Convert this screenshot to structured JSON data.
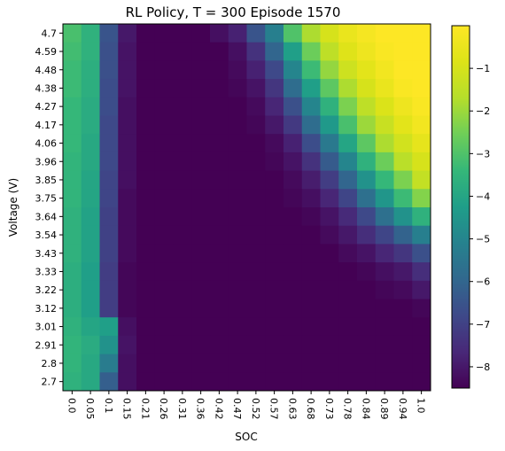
{
  "chart_data": {
    "type": "heatmap",
    "title": "RL Policy, T = 300 Episode 1570",
    "xlabel": "SOC",
    "ylabel": "Voltage (V)",
    "x_ticklabels": [
      "0.0",
      "0.05",
      "0.1",
      "0.15",
      "0.21",
      "0.26",
      "0.31",
      "0.36",
      "0.42",
      "0.47",
      "0.52",
      "0.57",
      "0.63",
      "0.68",
      "0.73",
      "0.78",
      "0.84",
      "0.89",
      "0.94",
      "1.0"
    ],
    "y_ticklabels": [
      "4.7",
      "4.59",
      "4.48",
      "4.38",
      "4.27",
      "4.17",
      "4.06",
      "3.96",
      "3.85",
      "3.75",
      "3.64",
      "3.54",
      "3.43",
      "3.33",
      "3.22",
      "3.12",
      "3.01",
      "2.91",
      "2.8",
      "2.7"
    ],
    "colorbar": {
      "colormap": "viridis",
      "range": [
        -8.5,
        0
      ],
      "ticklabels": [
        "-1",
        "-2",
        "-3",
        "-4",
        "-5",
        "-6",
        "-7",
        "-8"
      ],
      "tickvalues": [
        -1,
        -2,
        -3,
        -4,
        -5,
        -6,
        -7,
        -8
      ]
    },
    "values": [
      [
        -3.1,
        -3.6,
        -6.5,
        -8.0,
        -8.5,
        -8.5,
        -8.5,
        -8.5,
        -8.2,
        -7.8,
        -6.5,
        -5.2,
        -3.0,
        -1.8,
        -1.0,
        -0.5,
        -0.2,
        0,
        0,
        0
      ],
      [
        -3.2,
        -3.6,
        -6.6,
        -8.1,
        -8.5,
        -8.5,
        -8.5,
        -8.5,
        -8.5,
        -8.2,
        -7.4,
        -6.0,
        -4.2,
        -2.6,
        -1.5,
        -0.8,
        -0.4,
        -0.1,
        0,
        0
      ],
      [
        -3.3,
        -3.7,
        -6.6,
        -8.1,
        -8.5,
        -8.5,
        -8.5,
        -8.5,
        -8.5,
        -8.3,
        -7.8,
        -6.8,
        -5.0,
        -3.3,
        -2.1,
        -1.2,
        -0.7,
        -0.3,
        0,
        0
      ],
      [
        -3.3,
        -3.7,
        -6.7,
        -8.1,
        -8.5,
        -8.5,
        -8.5,
        -8.5,
        -8.5,
        -8.4,
        -8.1,
        -7.3,
        -5.8,
        -4.2,
        -2.8,
        -1.8,
        -1.0,
        -0.5,
        -0.1,
        0
      ],
      [
        -3.4,
        -3.8,
        -6.7,
        -8.2,
        -8.5,
        -8.5,
        -8.5,
        -8.5,
        -8.5,
        -8.5,
        -8.3,
        -7.7,
        -6.6,
        -5.0,
        -3.6,
        -2.4,
        -1.5,
        -0.9,
        -0.4,
        -0.1
      ],
      [
        -3.4,
        -3.8,
        -6.8,
        -8.2,
        -8.5,
        -8.5,
        -8.5,
        -8.5,
        -8.5,
        -8.5,
        -8.4,
        -8.0,
        -7.2,
        -5.8,
        -4.4,
        -3.1,
        -2.0,
        -1.3,
        -0.7,
        -0.3
      ],
      [
        -3.4,
        -3.9,
        -6.8,
        -8.2,
        -8.5,
        -8.5,
        -8.5,
        -8.5,
        -8.5,
        -8.5,
        -8.5,
        -8.3,
        -7.8,
        -6.7,
        -5.4,
        -4.0,
        -2.8,
        -1.8,
        -1.1,
        -0.6
      ],
      [
        -3.5,
        -3.9,
        -6.8,
        -8.2,
        -8.5,
        -8.5,
        -8.5,
        -8.5,
        -8.5,
        -8.5,
        -8.5,
        -8.4,
        -8.1,
        -7.4,
        -6.3,
        -5.0,
        -3.6,
        -2.6,
        -1.6,
        -1.0
      ],
      [
        -3.5,
        -4.0,
        -6.9,
        -8.2,
        -8.5,
        -8.5,
        -8.5,
        -8.5,
        -8.5,
        -8.5,
        -8.5,
        -8.5,
        -8.3,
        -7.9,
        -7.1,
        -6.0,
        -4.6,
        -3.4,
        -2.4,
        -1.4
      ],
      [
        -3.5,
        -4.0,
        -6.9,
        -8.3,
        -8.5,
        -8.5,
        -8.5,
        -8.5,
        -8.5,
        -8.5,
        -8.5,
        -8.5,
        -8.4,
        -8.2,
        -7.7,
        -6.9,
        -5.7,
        -4.5,
        -3.3,
        -2.3
      ],
      [
        -3.6,
        -4.1,
        -7.0,
        -8.3,
        -8.5,
        -8.5,
        -8.5,
        -8.5,
        -8.5,
        -8.5,
        -8.5,
        -8.5,
        -8.5,
        -8.4,
        -8.1,
        -7.6,
        -6.8,
        -5.7,
        -4.6,
        -3.6
      ],
      [
        -3.6,
        -4.1,
        -7.0,
        -8.3,
        -8.5,
        -8.5,
        -8.5,
        -8.5,
        -8.5,
        -8.5,
        -8.5,
        -8.5,
        -8.5,
        -8.5,
        -8.3,
        -8.0,
        -7.5,
        -6.9,
        -6.1,
        -5.2
      ],
      [
        -3.6,
        -4.1,
        -7.0,
        -8.3,
        -8.5,
        -8.5,
        -8.5,
        -8.5,
        -8.5,
        -8.5,
        -8.5,
        -8.5,
        -8.5,
        -8.5,
        -8.5,
        -8.3,
        -8.1,
        -7.7,
        -7.3,
        -6.6
      ],
      [
        -3.7,
        -4.2,
        -7.1,
        -8.4,
        -8.5,
        -8.5,
        -8.5,
        -8.5,
        -8.5,
        -8.5,
        -8.5,
        -8.5,
        -8.5,
        -8.5,
        -8.5,
        -8.5,
        -8.4,
        -8.2,
        -8.0,
        -7.5
      ],
      [
        -3.7,
        -4.2,
        -7.1,
        -8.4,
        -8.5,
        -8.5,
        -8.5,
        -8.5,
        -8.5,
        -8.5,
        -8.5,
        -8.5,
        -8.5,
        -8.5,
        -8.5,
        -8.5,
        -8.5,
        -8.4,
        -8.3,
        -8.0
      ],
      [
        -3.7,
        -4.2,
        -7.1,
        -8.4,
        -8.5,
        -8.5,
        -8.5,
        -8.5,
        -8.5,
        -8.5,
        -8.5,
        -8.5,
        -8.5,
        -8.5,
        -8.5,
        -8.5,
        -8.5,
        -8.5,
        -8.5,
        -8.4
      ],
      [
        -3.6,
        -4.0,
        -4.2,
        -8.2,
        -8.5,
        -8.5,
        -8.5,
        -8.5,
        -8.5,
        -8.5,
        -8.5,
        -8.5,
        -8.5,
        -8.5,
        -8.5,
        -8.5,
        -8.5,
        -8.5,
        -8.5,
        -8.5
      ],
      [
        -3.5,
        -3.8,
        -4.6,
        -8.1,
        -8.5,
        -8.5,
        -8.5,
        -8.5,
        -8.5,
        -8.5,
        -8.5,
        -8.5,
        -8.5,
        -8.5,
        -8.5,
        -8.5,
        -8.5,
        -8.5,
        -8.5,
        -8.5
      ],
      [
        -3.5,
        -3.9,
        -5.3,
        -8.2,
        -8.5,
        -8.5,
        -8.5,
        -8.5,
        -8.5,
        -8.5,
        -8.5,
        -8.5,
        -8.5,
        -8.5,
        -8.5,
        -8.5,
        -8.5,
        -8.5,
        -8.5,
        -8.5
      ],
      [
        -3.6,
        -3.9,
        -6.2,
        -8.2,
        -8.5,
        -8.5,
        -8.5,
        -8.5,
        -8.5,
        -8.5,
        -8.5,
        -8.5,
        -8.5,
        -8.5,
        -8.5,
        -8.5,
        -8.5,
        -8.5,
        -8.5,
        -8.5
      ]
    ]
  }
}
